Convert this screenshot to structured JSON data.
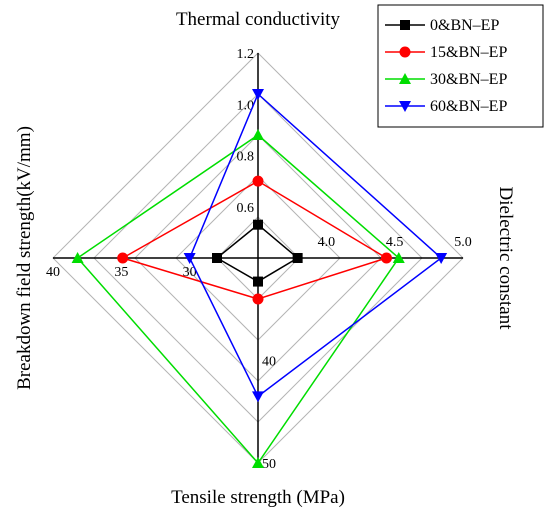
{
  "chart_data": {
    "type": "radar",
    "axes": [
      {
        "key": "thermal",
        "label": "Thermal conductivity",
        "min": 0.4,
        "max": 1.2,
        "ticks": [
          {
            "v": 0.6,
            "label": "0.6"
          },
          {
            "v": 0.8,
            "label": "0.8"
          },
          {
            "v": 1.0,
            "label": "1.0"
          },
          {
            "v": 1.2,
            "label": "1.2"
          }
        ]
      },
      {
        "key": "dielectric",
        "label": "Dielectric constant",
        "min": 3.5,
        "max": 5.0,
        "ticks": [
          {
            "v": 4.0,
            "label": "4.0"
          },
          {
            "v": 4.5,
            "label": "4.5"
          },
          {
            "v": 5.0,
            "label": "5.0"
          }
        ]
      },
      {
        "key": "tensile",
        "label": "Tensile strength (MPa)",
        "min": 30,
        "max": 50,
        "ticks": [
          {
            "v": 40,
            "label": "40"
          },
          {
            "v": 50,
            "label": "50"
          }
        ]
      },
      {
        "key": "breakdown",
        "label": "Breakdown field strength(kV/mm)",
        "min": 25,
        "max": 40,
        "ticks": [
          {
            "v": 30,
            "label": "30"
          },
          {
            "v": 35,
            "label": "35"
          },
          {
            "v": 40,
            "label": "40"
          }
        ]
      }
    ],
    "grid_levels": 5,
    "series": [
      {
        "name": "0&BN–EP",
        "color": "#000000",
        "marker": "square",
        "values": {
          "thermal": 0.53,
          "dielectric": 3.79,
          "tensile": 32.3,
          "breakdown": 28.0
        }
      },
      {
        "name": "15&BN–EP",
        "color": "#ff0000",
        "marker": "circle",
        "values": {
          "thermal": 0.7,
          "dielectric": 4.44,
          "tensile": 34.0,
          "breakdown": 34.9
        }
      },
      {
        "name": "30&BN–EP",
        "color": "#00dd00",
        "marker": "triangle-up",
        "values": {
          "thermal": 0.88,
          "dielectric": 4.53,
          "tensile": 50.0,
          "breakdown": 38.2
        }
      },
      {
        "name": "60&BN–EP",
        "color": "#0000ff",
        "marker": "triangle-down",
        "values": {
          "thermal": 1.04,
          "dielectric": 4.84,
          "tensile": 43.5,
          "breakdown": 30.0
        }
      }
    ],
    "legend_position": "top-right"
  }
}
